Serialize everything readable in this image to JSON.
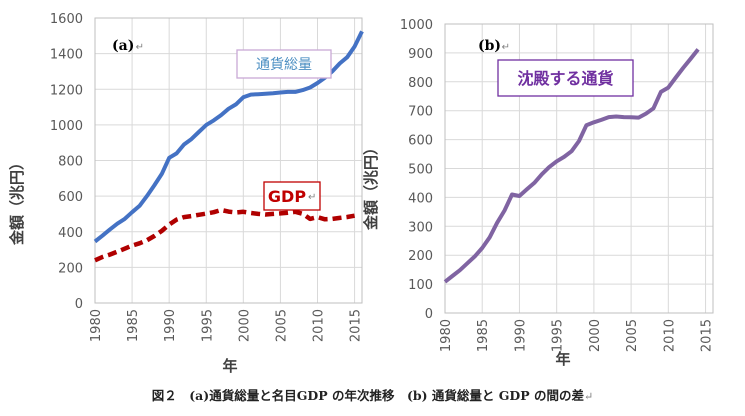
{
  "chart_data": [
    {
      "panel_label": "(a)",
      "type": "line",
      "xlabel": "年",
      "ylabel": "金額（兆円）",
      "xlim": [
        1980,
        2016
      ],
      "ylim": [
        0,
        1600
      ],
      "x_ticks": [
        1980,
        1985,
        1990,
        1995,
        2000,
        2005,
        2010,
        2015
      ],
      "y_ticks": [
        0,
        200,
        400,
        600,
        800,
        1000,
        1200,
        1400,
        1600
      ],
      "grid": true,
      "series": [
        {
          "name": "通貨総量",
          "color": "#4472C4",
          "style": "solid",
          "x": [
            1980,
            1981,
            1982,
            1983,
            1984,
            1985,
            1986,
            1987,
            1988,
            1989,
            1990,
            1991,
            1992,
            1993,
            1994,
            1995,
            1996,
            1997,
            1998,
            1999,
            2000,
            2001,
            2002,
            2003,
            2004,
            2005,
            2006,
            2007,
            2008,
            2009,
            2010,
            2011,
            2012,
            2013,
            2014,
            2015,
            2016
          ],
          "y": [
            345,
            378,
            412,
            445,
            472,
            510,
            545,
            600,
            660,
            725,
            815,
            840,
            890,
            920,
            960,
            1000,
            1025,
            1055,
            1090,
            1115,
            1155,
            1170,
            1172,
            1175,
            1178,
            1182,
            1185,
            1185,
            1195,
            1210,
            1235,
            1265,
            1300,
            1345,
            1380,
            1440,
            1525
          ]
        },
        {
          "name": "GDP",
          "color": "#B00000",
          "style": "dashed",
          "x": [
            1980,
            1981,
            1982,
            1983,
            1984,
            1985,
            1986,
            1987,
            1988,
            1989,
            1990,
            1991,
            1992,
            1993,
            1994,
            1995,
            1996,
            1997,
            1998,
            1999,
            2000,
            2001,
            2002,
            2003,
            2004,
            2005,
            2006,
            2007,
            2008,
            2009,
            2010,
            2011,
            2012,
            2013,
            2014,
            2015
          ],
          "y": [
            240,
            258,
            272,
            288,
            305,
            322,
            335,
            352,
            376,
            405,
            440,
            468,
            482,
            488,
            495,
            502,
            510,
            522,
            513,
            508,
            512,
            505,
            500,
            497,
            500,
            503,
            507,
            512,
            501,
            472,
            482,
            470,
            472,
            478,
            483,
            490
          ]
        }
      ],
      "labels": [
        {
          "text": "通貨総量",
          "color": "#4A8EC2",
          "boxed": true
        },
        {
          "text": "GDP",
          "color": "#C00000",
          "boxed": true
        }
      ]
    },
    {
      "panel_label": "(b)",
      "type": "line",
      "xlabel": "年",
      "ylabel": "金額（兆円）",
      "xlim": [
        1980,
        2016
      ],
      "ylim": [
        0,
        1000
      ],
      "x_ticks": [
        1980,
        1985,
        1990,
        1995,
        2000,
        2005,
        2010,
        2015
      ],
      "y_ticks": [
        0,
        100,
        200,
        300,
        400,
        500,
        600,
        700,
        800,
        900,
        1000
      ],
      "grid": true,
      "series": [
        {
          "name": "沈殿する通貨",
          "color": "#8064A2",
          "style": "solid",
          "x": [
            1980,
            1981,
            1982,
            1983,
            1984,
            1985,
            1986,
            1987,
            1988,
            1989,
            1990,
            1991,
            1992,
            1993,
            1994,
            1995,
            1996,
            1997,
            1998,
            1999,
            2000,
            2001,
            2002,
            2003,
            2004,
            2005,
            2006,
            2007,
            2008,
            2009,
            2010,
            2011,
            2012,
            2013,
            2014
          ],
          "y": [
            108,
            128,
            148,
            172,
            196,
            225,
            262,
            312,
            355,
            410,
            405,
            428,
            450,
            480,
            505,
            525,
            540,
            560,
            595,
            650,
            660,
            668,
            678,
            680,
            678,
            677,
            676,
            690,
            708,
            765,
            780,
            815,
            848,
            880,
            912
          ]
        }
      ],
      "labels": [
        {
          "text": "沈殿する通貨",
          "color": "#7030A0",
          "boxed": true
        }
      ]
    }
  ],
  "caption": "図２　(a)通貨総量と名目GDP の年次推移　(b) 通貨総量と GDP の間の差",
  "paragraph_mark": "↵"
}
